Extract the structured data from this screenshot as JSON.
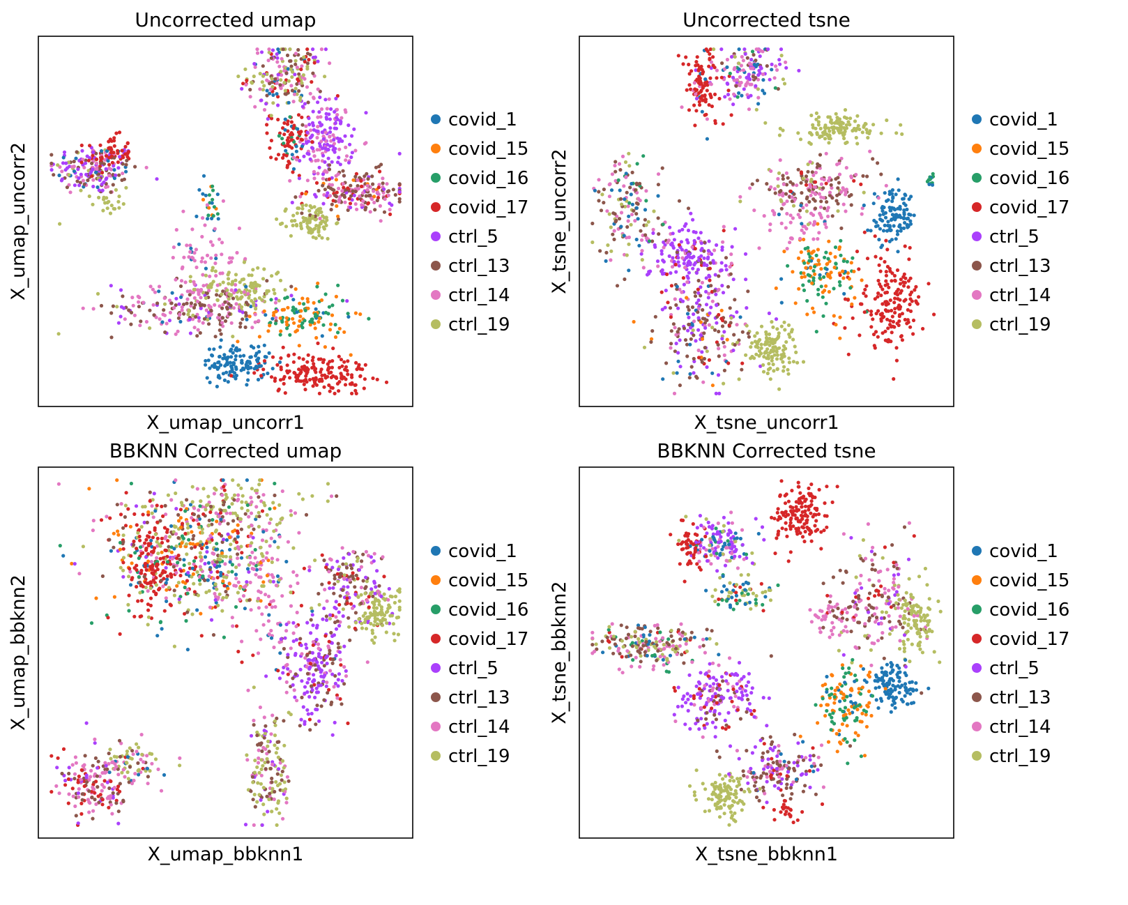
{
  "palette": {
    "covid_1": "#1f77b4",
    "covid_15": "#ff7f0e",
    "covid_16": "#279e68",
    "covid_17": "#d62728",
    "ctrl_5": "#aa40fc",
    "ctrl_13": "#8c564b",
    "ctrl_14": "#e377c2",
    "ctrl_19": "#b5bd61"
  },
  "chart_data": [
    {
      "type": "scatter",
      "title": "Uncorrected umap",
      "xlabel": "X_umap_uncorr1",
      "ylabel": "X_umap_uncorr2",
      "xlim": [
        0,
        10
      ],
      "ylim": [
        0,
        10
      ],
      "legend": [
        "covid_1",
        "covid_15",
        "covid_16",
        "covid_17",
        "ctrl_5",
        "ctrl_13",
        "ctrl_14",
        "ctrl_19"
      ],
      "legend_position": "right",
      "clusters": [
        {
          "x": 1.5,
          "y": 6.4,
          "sx": 0.6,
          "sy": 0.35,
          "counts": {
            "ctrl_5": 60,
            "ctrl_13": 50,
            "ctrl_14": 40,
            "covid_1": 20,
            "ctrl_19": 15
          }
        },
        {
          "x": 1.9,
          "y": 6.8,
          "sx": 0.3,
          "sy": 0.25,
          "counts": {
            "covid_17": 60
          }
        },
        {
          "x": 1.8,
          "y": 5.5,
          "sx": 0.2,
          "sy": 0.15,
          "counts": {
            "ctrl_19": 20
          }
        },
        {
          "x": 6.6,
          "y": 8.9,
          "sx": 0.5,
          "sy": 0.45,
          "counts": {
            "ctrl_19": 50,
            "ctrl_14": 50,
            "ctrl_13": 40,
            "covid_17": 25,
            "ctrl_5": 25,
            "covid_1": 15
          }
        },
        {
          "x": 7.7,
          "y": 7.2,
          "sx": 0.35,
          "sy": 0.55,
          "counts": {
            "ctrl_5": 110,
            "ctrl_14": 60
          }
        },
        {
          "x": 6.7,
          "y": 7.1,
          "sx": 0.25,
          "sy": 0.45,
          "counts": {
            "covid_17": 60,
            "covid_1": 10,
            "covid_16": 10
          }
        },
        {
          "x": 8.5,
          "y": 5.8,
          "sx": 0.7,
          "sy": 0.3,
          "counts": {
            "ctrl_13": 80,
            "ctrl_14": 60,
            "covid_17": 30,
            "ctrl_5": 20,
            "covid_15": 10
          }
        },
        {
          "x": 7.3,
          "y": 5.0,
          "sx": 0.3,
          "sy": 0.25,
          "counts": {
            "ctrl_19": 90
          }
        },
        {
          "x": 4.6,
          "y": 5.4,
          "sx": 0.15,
          "sy": 0.4,
          "counts": {
            "covid_1": 10,
            "covid_16": 10,
            "covid_15": 5
          }
        },
        {
          "x": 4.4,
          "y": 2.7,
          "sx": 1.2,
          "sy": 0.35,
          "counts": {
            "ctrl_14": 100,
            "ctrl_13": 90,
            "ctrl_5": 30,
            "ctrl_19": 20,
            "covid_1": 10
          }
        },
        {
          "x": 4.4,
          "y": 4.0,
          "sx": 0.5,
          "sy": 0.6,
          "counts": {
            "ctrl_14": 60,
            "covid_1": 8
          }
        },
        {
          "x": 5.4,
          "y": 3.2,
          "sx": 0.6,
          "sy": 0.3,
          "counts": {
            "ctrl_19": 110
          }
        },
        {
          "x": 7.1,
          "y": 2.4,
          "sx": 0.6,
          "sy": 0.35,
          "counts": {
            "covid_15": 60,
            "covid_16": 50,
            "covid_1": 10
          }
        },
        {
          "x": 5.3,
          "y": 1.2,
          "sx": 0.45,
          "sy": 0.25,
          "counts": {
            "covid_1": 120
          }
        },
        {
          "x": 7.4,
          "y": 0.9,
          "sx": 0.75,
          "sy": 0.28,
          "counts": {
            "covid_17": 170
          }
        }
      ]
    },
    {
      "type": "scatter",
      "title": "Uncorrected tsne",
      "xlabel": "X_tsne_uncorr1",
      "ylabel": "X_tsne_uncorr2",
      "xlim": [
        0,
        10
      ],
      "ylim": [
        0,
        10
      ],
      "legend": [
        "covid_1",
        "covid_15",
        "covid_16",
        "covid_17",
        "ctrl_5",
        "ctrl_13",
        "ctrl_14",
        "ctrl_19"
      ],
      "legend_position": "right",
      "clusters": [
        {
          "x": 3.3,
          "y": 8.6,
          "sx": 0.3,
          "sy": 0.55,
          "counts": {
            "covid_17": 90,
            "ctrl_14": 10,
            "covid_1": 5
          }
        },
        {
          "x": 4.5,
          "y": 9.0,
          "sx": 0.45,
          "sy": 0.4,
          "counts": {
            "ctrl_5": 50,
            "ctrl_14": 50,
            "covid_1": 20,
            "ctrl_13": 15,
            "ctrl_19": 10,
            "covid_16": 5
          }
        },
        {
          "x": 6.9,
          "y": 7.5,
          "sx": 0.7,
          "sy": 0.2,
          "counts": {
            "ctrl_19": 120
          }
        },
        {
          "x": 6.3,
          "y": 5.9,
          "sx": 0.8,
          "sy": 0.35,
          "counts": {
            "ctrl_13": 80,
            "ctrl_14": 70,
            "ctrl_19": 20,
            "covid_17": 10
          }
        },
        {
          "x": 5.8,
          "y": 5.0,
          "sx": 0.5,
          "sy": 0.4,
          "counts": {
            "ctrl_14": 50,
            "covid_1": 5
          }
        },
        {
          "x": 8.4,
          "y": 5.1,
          "sx": 0.3,
          "sy": 0.35,
          "counts": {
            "covid_1": 110
          }
        },
        {
          "x": 9.4,
          "y": 6.1,
          "sx": 0.05,
          "sy": 0.1,
          "counts": {
            "covid_16": 10,
            "covid_1": 4
          }
        },
        {
          "x": 8.3,
          "y": 2.8,
          "sx": 0.45,
          "sy": 0.6,
          "counts": {
            "covid_17": 170
          }
        },
        {
          "x": 6.5,
          "y": 3.6,
          "sx": 0.45,
          "sy": 0.5,
          "counts": {
            "covid_15": 70,
            "covid_16": 50,
            "covid_1": 10
          }
        },
        {
          "x": 5.1,
          "y": 1.6,
          "sx": 0.35,
          "sy": 0.35,
          "counts": {
            "ctrl_19": 120
          }
        },
        {
          "x": 3.0,
          "y": 4.0,
          "sx": 0.55,
          "sy": 0.5,
          "counts": {
            "ctrl_5": 130,
            "ctrl_14": 30,
            "ctrl_13": 15,
            "covid_17": 15
          }
        },
        {
          "x": 1.3,
          "y": 5.3,
          "sx": 0.45,
          "sy": 0.7,
          "counts": {
            "ctrl_13": 50,
            "ctrl_14": 40,
            "ctrl_19": 25,
            "covid_1": 20,
            "covid_16": 10
          }
        },
        {
          "x": 3.3,
          "y": 2.1,
          "sx": 0.6,
          "sy": 0.75,
          "counts": {
            "ctrl_13": 80,
            "ctrl_5": 60,
            "ctrl_14": 30,
            "covid_1": 15,
            "covid_15": 10,
            "covid_17": 15,
            "ctrl_19": 10
          }
        }
      ]
    },
    {
      "type": "scatter",
      "title": "BBKNN Corrected umap",
      "xlabel": "X_umap_bbknn1",
      "ylabel": "X_umap_bbknn2",
      "xlim": [
        0,
        10
      ],
      "ylim": [
        0,
        10
      ],
      "legend": [
        "covid_1",
        "covid_15",
        "covid_16",
        "covid_17",
        "ctrl_5",
        "ctrl_13",
        "ctrl_14",
        "ctrl_19"
      ],
      "legend_position": "right",
      "clusters": [
        {
          "x": 4.1,
          "y": 7.6,
          "sx": 1.1,
          "sy": 0.9,
          "counts": {
            "ctrl_19": 120,
            "covid_17": 80,
            "covid_1": 70,
            "covid_15": 70,
            "covid_16": 60,
            "ctrl_14": 60,
            "ctrl_13": 50,
            "ctrl_5": 30
          }
        },
        {
          "x": 3.0,
          "y": 7.4,
          "sx": 0.3,
          "sy": 0.75,
          "counts": {
            "covid_17": 120
          }
        },
        {
          "x": 5.0,
          "y": 9.0,
          "sx": 1.0,
          "sy": 0.3,
          "counts": {
            "ctrl_19": 60,
            "ctrl_14": 30,
            "ctrl_13": 20
          }
        },
        {
          "x": 5.8,
          "y": 7.5,
          "sx": 0.6,
          "sy": 0.8,
          "counts": {
            "ctrl_14": 80,
            "ctrl_19": 20
          }
        },
        {
          "x": 6.2,
          "y": 5.5,
          "sx": 0.8,
          "sy": 0.5,
          "counts": {
            "ctrl_14": 25,
            "covid_17": 10,
            "covid_1": 8
          }
        },
        {
          "x": 8.3,
          "y": 6.8,
          "sx": 0.5,
          "sy": 0.6,
          "counts": {
            "ctrl_5": 50,
            "ctrl_13": 50,
            "covid_17": 20,
            "ctrl_14": 30,
            "ctrl_19": 20
          }
        },
        {
          "x": 9.1,
          "y": 6.1,
          "sx": 0.35,
          "sy": 0.35,
          "counts": {
            "ctrl_19": 100
          }
        },
        {
          "x": 7.4,
          "y": 4.5,
          "sx": 0.45,
          "sy": 0.75,
          "counts": {
            "ctrl_5": 110,
            "ctrl_13": 50,
            "ctrl_14": 30,
            "covid_17": 20
          }
        },
        {
          "x": 6.2,
          "y": 1.9,
          "sx": 0.3,
          "sy": 0.85,
          "counts": {
            "ctrl_19": 60,
            "ctrl_13": 40,
            "ctrl_14": 30,
            "ctrl_5": 15
          }
        },
        {
          "x": 1.5,
          "y": 1.4,
          "sx": 0.5,
          "sy": 0.45,
          "counts": {
            "ctrl_14": 60,
            "ctrl_13": 40,
            "covid_17": 40,
            "ctrl_5": 20
          }
        },
        {
          "x": 2.5,
          "y": 2.0,
          "sx": 0.4,
          "sy": 0.3,
          "counts": {
            "ctrl_19": 30,
            "ctrl_14": 25,
            "ctrl_13": 10,
            "covid_1": 10
          }
        }
      ]
    },
    {
      "type": "scatter",
      "title": "BBKNN Corrected tsne",
      "xlabel": "X_tsne_bbknn1",
      "ylabel": "X_tsne_bbknn2",
      "xlim": [
        0,
        10
      ],
      "ylim": [
        0,
        10
      ],
      "legend": [
        "covid_1",
        "covid_15",
        "covid_16",
        "covid_17",
        "ctrl_5",
        "ctrl_13",
        "ctrl_14",
        "ctrl_19"
      ],
      "legend_position": "right",
      "clusters": [
        {
          "x": 5.9,
          "y": 8.7,
          "sx": 0.35,
          "sy": 0.4,
          "counts": {
            "covid_17": 150
          }
        },
        {
          "x": 3.8,
          "y": 8.0,
          "sx": 0.35,
          "sy": 0.35,
          "counts": {
            "ctrl_5": 60,
            "ctrl_14": 30,
            "covid_1": 25,
            "ctrl_19": 15,
            "covid_16": 10
          }
        },
        {
          "x": 3.0,
          "y": 7.9,
          "sx": 0.2,
          "sy": 0.3,
          "counts": {
            "covid_17": 50
          }
        },
        {
          "x": 4.3,
          "y": 6.6,
          "sx": 0.4,
          "sy": 0.25,
          "counts": {
            "ctrl_19": 30,
            "covid_1": 20,
            "covid_16": 15,
            "covid_17": 10
          }
        },
        {
          "x": 8.0,
          "y": 6.4,
          "sx": 0.6,
          "sy": 0.8,
          "counts": {
            "ctrl_14": 60,
            "ctrl_13": 60,
            "ctrl_5": 20,
            "covid_17": 15,
            "ctrl_19": 20
          }
        },
        {
          "x": 9.0,
          "y": 5.9,
          "sx": 0.3,
          "sy": 0.5,
          "counts": {
            "ctrl_19": 100
          }
        },
        {
          "x": 6.9,
          "y": 6.0,
          "sx": 0.4,
          "sy": 0.3,
          "counts": {
            "ctrl_14": 40,
            "ctrl_13": 10
          }
        },
        {
          "x": 8.4,
          "y": 4.1,
          "sx": 0.35,
          "sy": 0.3,
          "counts": {
            "covid_1": 110
          }
        },
        {
          "x": 7.2,
          "y": 3.6,
          "sx": 0.4,
          "sy": 0.55,
          "counts": {
            "covid_15": 70,
            "covid_16": 50,
            "covid_1": 15
          }
        },
        {
          "x": 1.9,
          "y": 5.2,
          "sx": 0.8,
          "sy": 0.3,
          "counts": {
            "ctrl_13": 60,
            "ctrl_14": 50,
            "ctrl_19": 40,
            "covid_1": 20,
            "covid_16": 15,
            "covid_17": 10
          }
        },
        {
          "x": 3.6,
          "y": 3.8,
          "sx": 0.55,
          "sy": 0.45,
          "counts": {
            "ctrl_5": 110,
            "covid_17": 25,
            "ctrl_14": 25,
            "ctrl_13": 20
          }
        },
        {
          "x": 5.3,
          "y": 1.8,
          "sx": 0.6,
          "sy": 0.4,
          "counts": {
            "ctrl_13": 70,
            "ctrl_5": 40,
            "ctrl_14": 30,
            "covid_17": 15,
            "covid_1": 10
          }
        },
        {
          "x": 3.9,
          "y": 1.1,
          "sx": 0.3,
          "sy": 0.3,
          "counts": {
            "ctrl_19": 110
          }
        },
        {
          "x": 5.5,
          "y": 0.7,
          "sx": 0.2,
          "sy": 0.15,
          "counts": {
            "covid_17": 20
          }
        }
      ]
    }
  ]
}
